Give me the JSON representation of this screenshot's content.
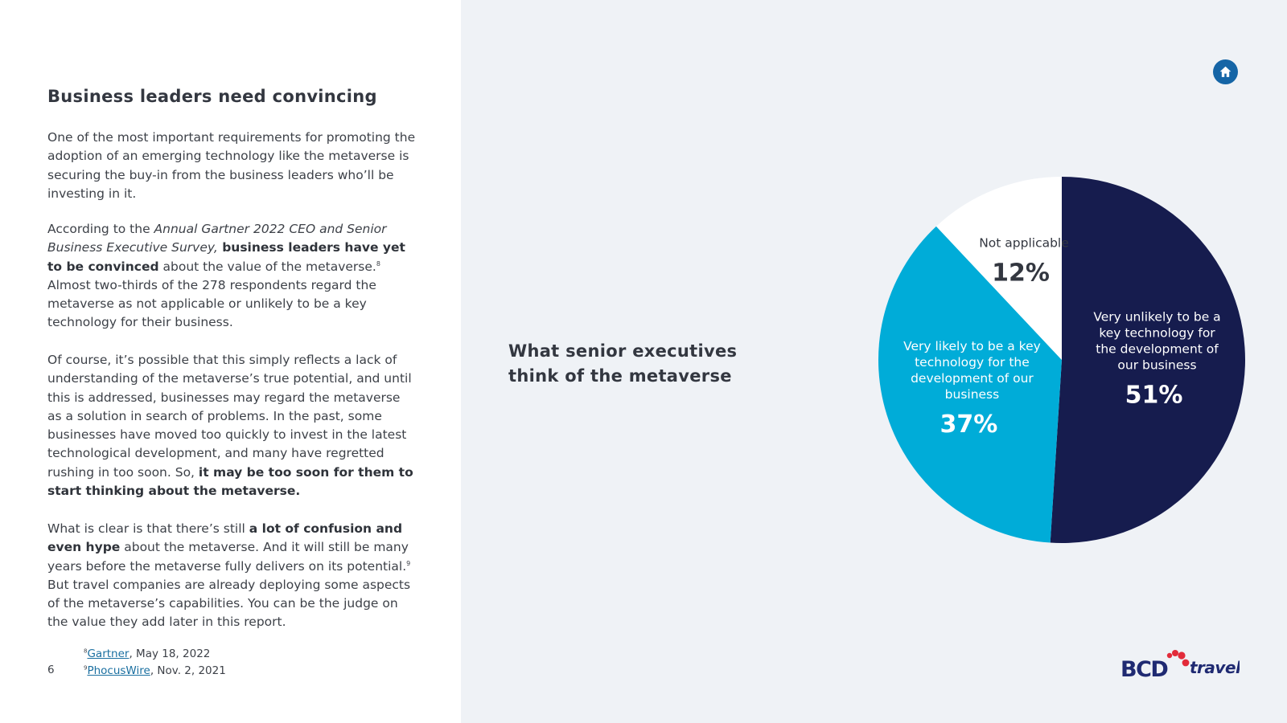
{
  "left": {
    "title": "Business leaders need convincing",
    "p1": "One of the most important requirements for promoting the adoption of an emerging technology like the metaverse is securing the buy-in from the business leaders who’ll be investing in it.",
    "p2": {
      "t1": "According to the ",
      "t2_italic": "Annual Gartner 2022 CEO and Senior Business Executive Survey,",
      "t3_bold": " business leaders have yet to be convinced",
      "t4": " about the value of the metaverse.",
      "sup": "8",
      "t5": " Almost two-thirds of the 278 respondents regard the metaverse as not applicable or unlikely to be a key technology for their business."
    },
    "p3": {
      "t1": "Of course, it’s possible that this simply reflects a lack of understanding of the metaverse’s true potential, and until this is addressed, businesses may regard the metaverse as a solution in search of problems. In the past, some businesses have moved too quickly to invest in the latest technological development, and many have regretted rushing in too soon. So, ",
      "t2_bold": "it may be too soon for them to start thinking about the metaverse."
    },
    "p4": {
      "t1": "What is clear is that there’s still ",
      "t2_bold": "a lot of confusion and even hype",
      "t3": " about the metaverse. And it will still be many years before the metaverse fully delivers on its potential.",
      "sup": "9",
      "t4": " But travel companies are already deploying some aspects of the metaverse’s capabilities. You can be the judge on the value they add later in this report."
    },
    "page_number": "6",
    "footnotes": [
      {
        "num": "8",
        "link": "Gartner",
        "rest": ", May 18, 2022"
      },
      {
        "num": "9",
        "link": "PhocusWire",
        "rest": ", Nov. 2, 2021"
      }
    ]
  },
  "right": {
    "chart_title_line1": "What senior executives",
    "chart_title_line2": "think of the metaverse",
    "home_icon": "home-icon"
  },
  "chart_data": {
    "type": "pie",
    "title": "What senior executives think of the metaverse",
    "slices": [
      {
        "label": "Very unlikely to be a key technology for the development of our business",
        "value": 51,
        "value_label": "51%",
        "color": "#161c4e"
      },
      {
        "label": "Very likely to be a key technology for the development of our business",
        "value": 37,
        "value_label": "37%",
        "color": "#00acd8"
      },
      {
        "label": "Not applicable",
        "value": 12,
        "value_label": "12%",
        "color": "#ffffff"
      }
    ]
  },
  "brand": {
    "logo_text_1": "BCD",
    "logo_text_2": "travel",
    "logo_color": "#1f2a72",
    "accent_color": "#e22b3a"
  }
}
